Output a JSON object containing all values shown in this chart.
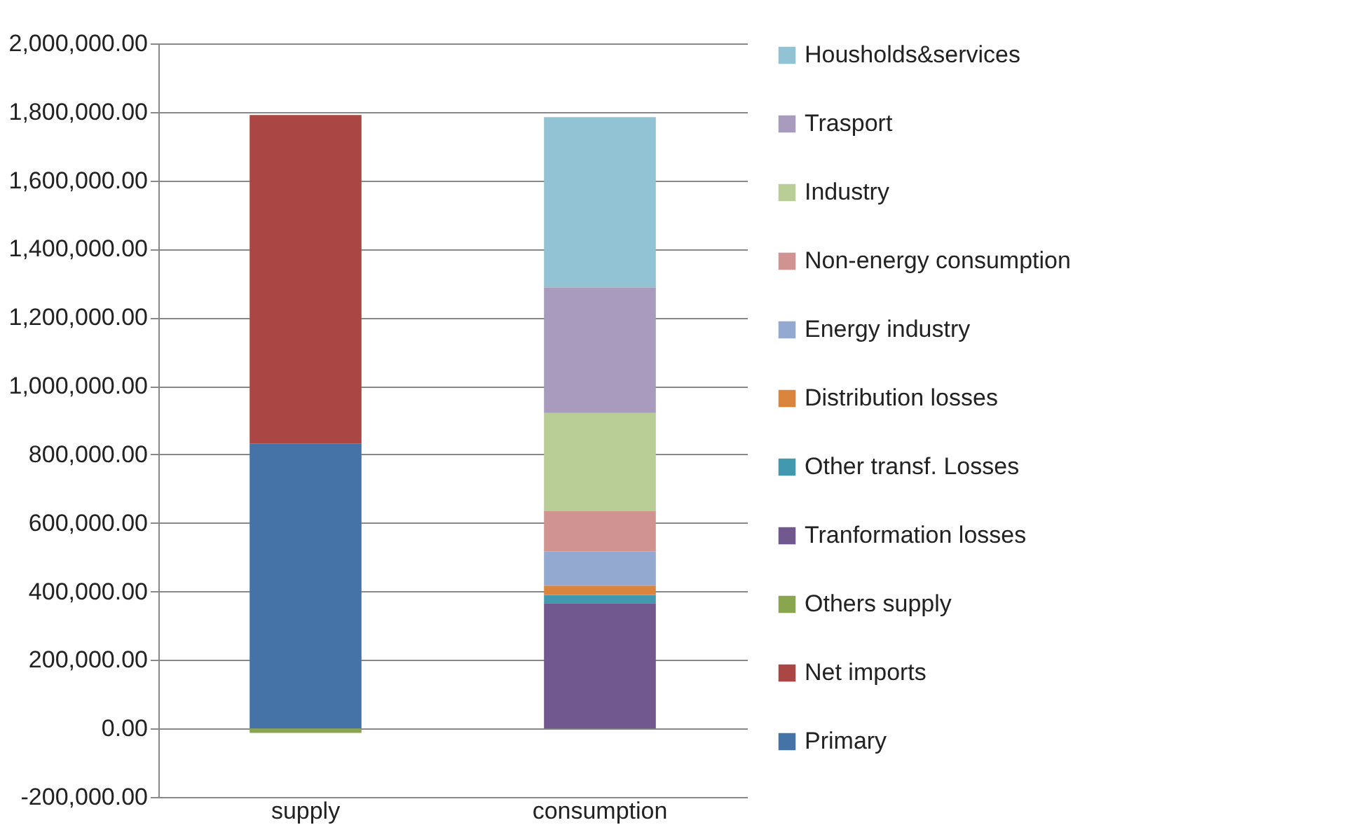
{
  "chart_data": {
    "type": "bar",
    "stacked": true,
    "categories": [
      "supply",
      "consumption"
    ],
    "series": [
      {
        "name": "Primary",
        "color": "#4572a7",
        "values": [
          832000,
          null
        ]
      },
      {
        "name": "Net imports",
        "color": "#aa4643",
        "values": [
          959000,
          null
        ]
      },
      {
        "name": "Others supply",
        "color": "#89a54e",
        "values": [
          -13000,
          null
        ]
      },
      {
        "name": "Tranformation losses",
        "color": "#71588f",
        "values": [
          null,
          366000
        ]
      },
      {
        "name": "Other transf.  Losses",
        "color": "#4198af",
        "values": [
          null,
          24000
        ]
      },
      {
        "name": "Distribution losses",
        "color": "#db843d",
        "values": [
          null,
          27000
        ]
      },
      {
        "name": "Energy industry",
        "color": "#93a9cf",
        "values": [
          null,
          100000
        ]
      },
      {
        "name": "Non-energy consumption",
        "color": "#d19392",
        "values": [
          null,
          117000
        ]
      },
      {
        "name": "Industry",
        "color": "#b9cd96",
        "values": [
          null,
          287000
        ]
      },
      {
        "name": "Trasport",
        "color": "#a99bbd",
        "values": [
          null,
          367000
        ]
      },
      {
        "name": "Housholds&services",
        "color": "#92c3d4",
        "values": [
          null,
          497000
        ]
      }
    ],
    "ylim": [
      -200000,
      2000000
    ],
    "yticks": [
      {
        "value": -200000,
        "label": "-200,000.00"
      },
      {
        "value": 0,
        "label": "0.00"
      },
      {
        "value": 200000,
        "label": "200,000.00"
      },
      {
        "value": 400000,
        "label": "400,000.00"
      },
      {
        "value": 600000,
        "label": "600,000.00"
      },
      {
        "value": 800000,
        "label": "800,000.00"
      },
      {
        "value": 1000000,
        "label": "1,000,000.00"
      },
      {
        "value": 1200000,
        "label": "1,200,000.00"
      },
      {
        "value": 1400000,
        "label": "1,400,000.00"
      },
      {
        "value": 1600000,
        "label": "1,600,000.00"
      },
      {
        "value": 1800000,
        "label": "1,800,000.00"
      },
      {
        "value": 2000000,
        "label": "2,000,000.00"
      }
    ],
    "grid": "y",
    "legend": "right"
  }
}
